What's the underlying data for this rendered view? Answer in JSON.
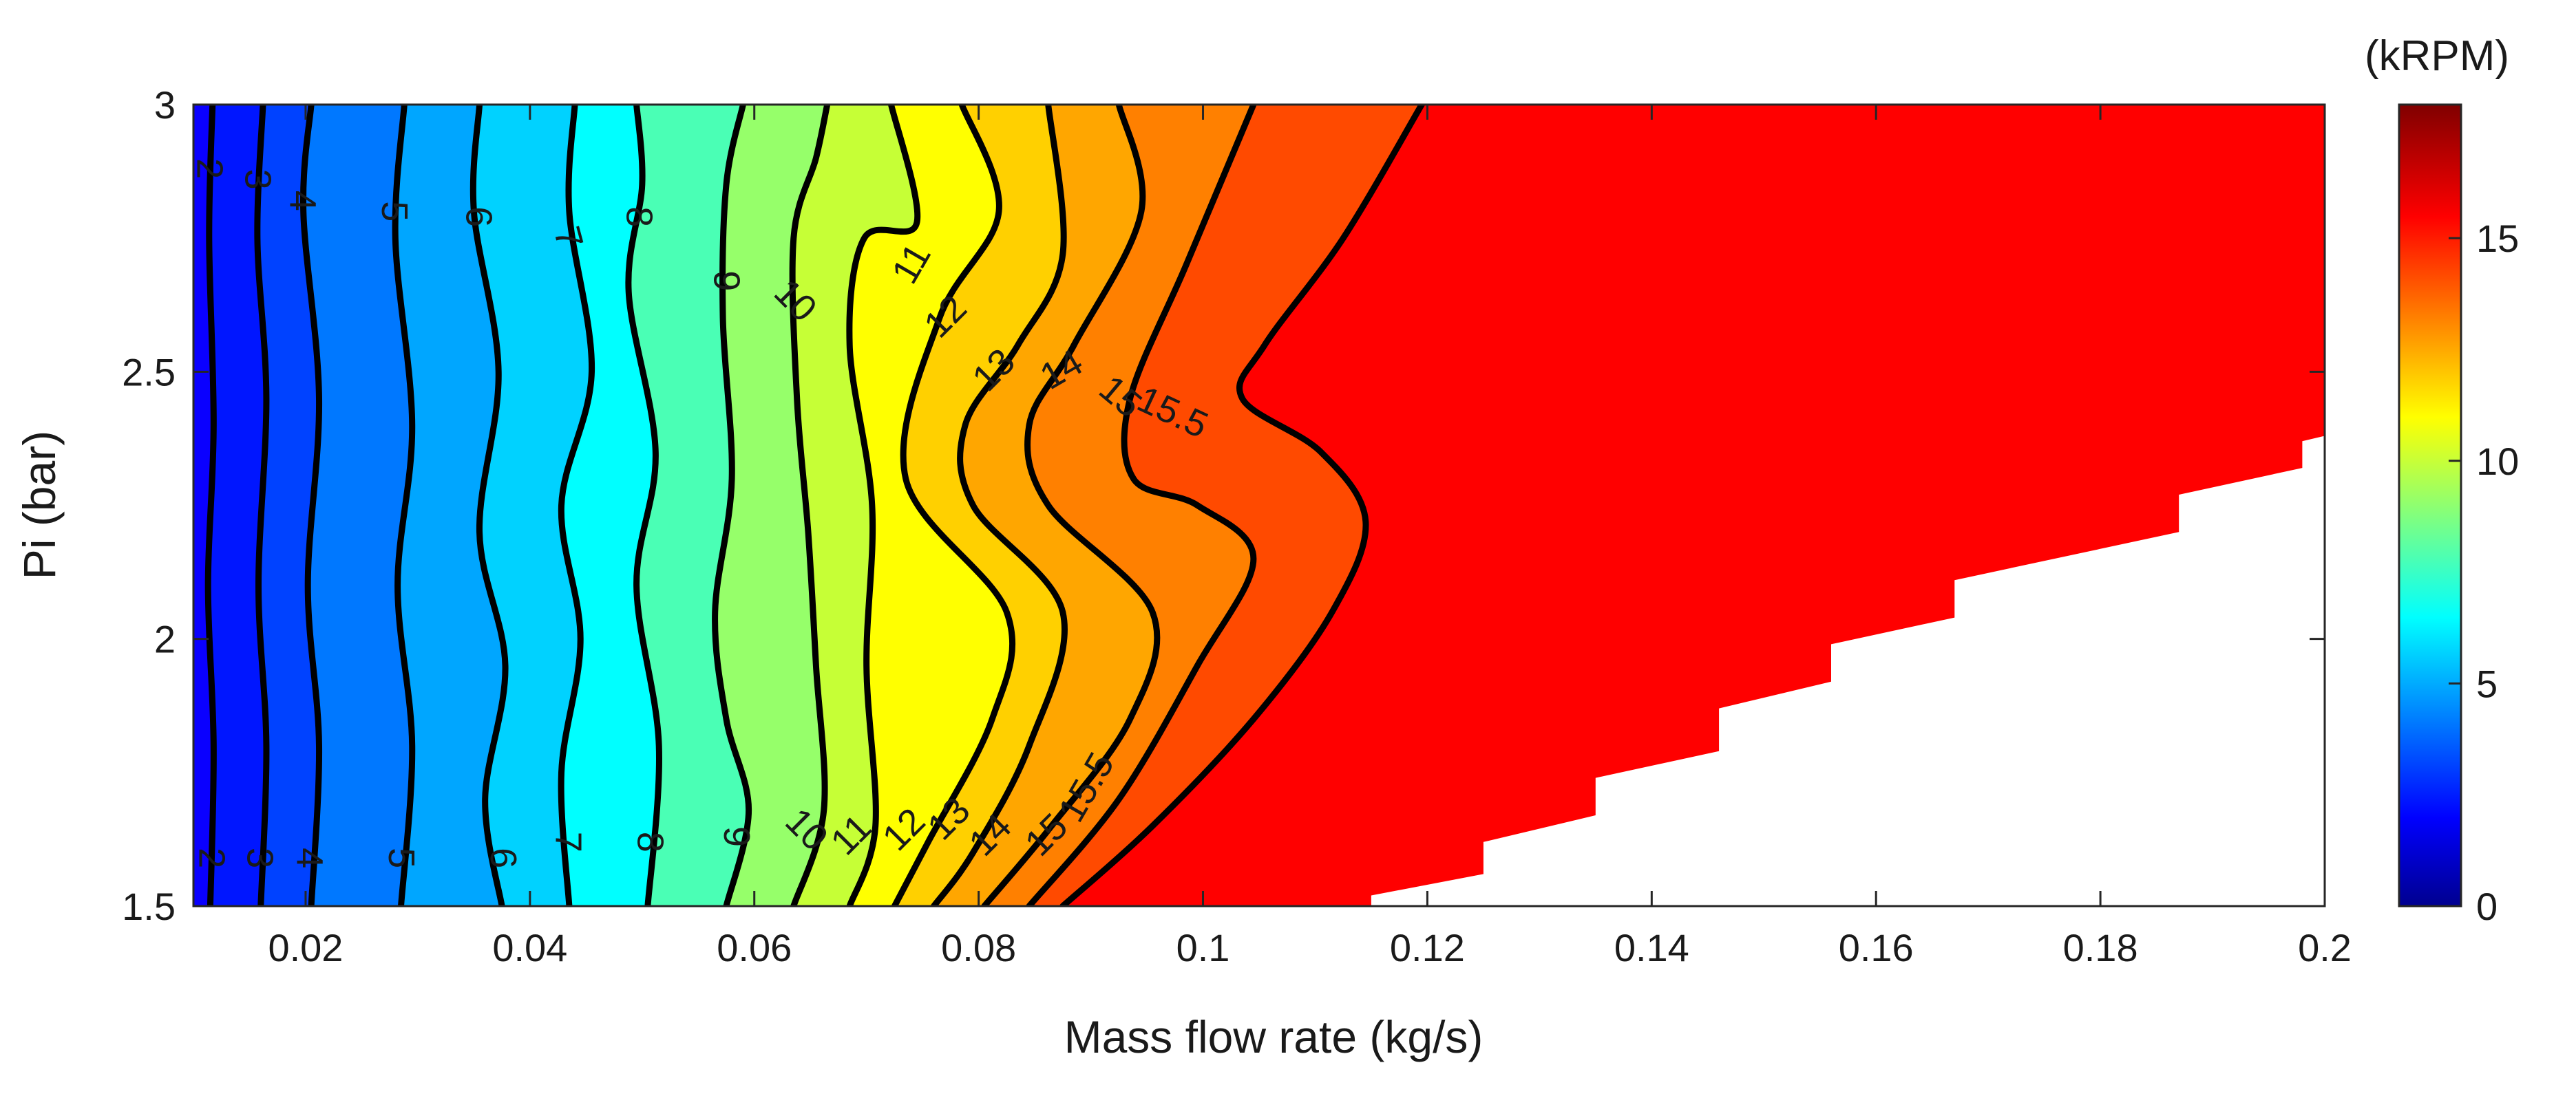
{
  "chart_data": {
    "type": "contour",
    "title": "",
    "xlabel": "Mass flow rate (kg/s)",
    "ylabel": "Pi (bar)",
    "xlim": [
      0.01,
      0.2
    ],
    "ylim": [
      1.5,
      3
    ],
    "x_ticks": [
      {
        "value": 0.02,
        "label": "0.02"
      },
      {
        "value": 0.04,
        "label": "0.04"
      },
      {
        "value": 0.06,
        "label": "0.06"
      },
      {
        "value": 0.08,
        "label": "0.08"
      },
      {
        "value": 0.1,
        "label": "0.1"
      },
      {
        "value": 0.12,
        "label": "0.12"
      },
      {
        "value": 0.14,
        "label": "0.14"
      },
      {
        "value": 0.16,
        "label": "0.16"
      },
      {
        "value": 0.18,
        "label": "0.18"
      },
      {
        "value": 0.2,
        "label": "0.2"
      }
    ],
    "y_ticks": [
      {
        "value": 1.5,
        "label": "1.5"
      },
      {
        "value": 2,
        "label": "2"
      },
      {
        "value": 2.5,
        "label": "2.5"
      },
      {
        "value": 3,
        "label": "3"
      }
    ],
    "colorbar": {
      "title": "(kRPM)",
      "range": [
        0,
        18
      ],
      "ticks": [
        {
          "value": 0,
          "label": "0"
        },
        {
          "value": 5,
          "label": "5"
        },
        {
          "value": 10,
          "label": "10"
        },
        {
          "value": 15,
          "label": "15"
        }
      ]
    },
    "contour_levels": [
      2,
      3,
      4,
      5,
      6,
      7,
      8,
      9,
      10,
      11,
      12,
      13,
      14,
      15,
      15.5
    ],
    "contours": [
      {
        "level": 2,
        "points": [
          [
            0.0115,
            1.5
          ],
          [
            0.0118,
            1.8
          ],
          [
            0.0113,
            2.1
          ],
          [
            0.0118,
            2.4
          ],
          [
            0.0114,
            2.75
          ],
          [
            0.0117,
            3.0
          ]
        ]
      },
      {
        "level": 3,
        "points": [
          [
            0.016,
            1.5
          ],
          [
            0.0165,
            1.8
          ],
          [
            0.0158,
            2.1
          ],
          [
            0.0165,
            2.45
          ],
          [
            0.0157,
            2.75
          ],
          [
            0.0162,
            3.0
          ]
        ]
      },
      {
        "level": 4,
        "points": [
          [
            0.0205,
            1.5
          ],
          [
            0.0212,
            1.8
          ],
          [
            0.0202,
            2.1
          ],
          [
            0.0212,
            2.45
          ],
          [
            0.0198,
            2.8
          ],
          [
            0.0205,
            3.0
          ]
        ]
      },
      {
        "level": 5,
        "points": [
          [
            0.0285,
            1.5
          ],
          [
            0.0295,
            1.8
          ],
          [
            0.0282,
            2.1
          ],
          [
            0.0295,
            2.4
          ],
          [
            0.028,
            2.75
          ],
          [
            0.0288,
            3.0
          ]
        ]
      },
      {
        "level": 6,
        "points": [
          [
            0.0375,
            1.5
          ],
          [
            0.036,
            1.7
          ],
          [
            0.0378,
            1.95
          ],
          [
            0.0355,
            2.2
          ],
          [
            0.0372,
            2.5
          ],
          [
            0.035,
            2.8
          ],
          [
            0.0355,
            3.0
          ]
        ]
      },
      {
        "level": 7,
        "points": [
          [
            0.0435,
            1.5
          ],
          [
            0.0428,
            1.75
          ],
          [
            0.0445,
            2.0
          ],
          [
            0.0428,
            2.25
          ],
          [
            0.0455,
            2.5
          ],
          [
            0.0435,
            2.8
          ],
          [
            0.044,
            3.0
          ]
        ]
      },
      {
        "level": 8,
        "points": [
          [
            0.0505,
            1.5
          ],
          [
            0.0515,
            1.8
          ],
          [
            0.0495,
            2.1
          ],
          [
            0.0512,
            2.35
          ],
          [
            0.0488,
            2.65
          ],
          [
            0.05,
            2.85
          ],
          [
            0.0495,
            3.0
          ]
        ]
      },
      {
        "level": 9,
        "points": [
          [
            0.0575,
            1.5
          ],
          [
            0.0595,
            1.68
          ],
          [
            0.0575,
            1.85
          ],
          [
            0.0565,
            2.05
          ],
          [
            0.058,
            2.3
          ],
          [
            0.0572,
            2.6
          ],
          [
            0.0575,
            2.85
          ],
          [
            0.059,
            3.0
          ]
        ]
      },
      {
        "level": 10,
        "points": [
          [
            0.0635,
            1.5
          ],
          [
            0.0662,
            1.68
          ],
          [
            0.0655,
            1.95
          ],
          [
            0.0648,
            2.2
          ],
          [
            0.0638,
            2.45
          ],
          [
            0.0635,
            2.75
          ],
          [
            0.0655,
            2.9
          ],
          [
            0.0665,
            3.0
          ]
        ]
      },
      {
        "level": 11,
        "points": [
          [
            0.0685,
            1.5
          ],
          [
            0.0708,
            1.65
          ],
          [
            0.07,
            1.95
          ],
          [
            0.0705,
            2.25
          ],
          [
            0.0685,
            2.55
          ],
          [
            0.0698,
            2.75
          ],
          [
            0.0745,
            2.78
          ],
          [
            0.0722,
            3.0
          ]
        ]
      },
      {
        "level": 12,
        "points": [
          [
            0.0725,
            1.5
          ],
          [
            0.0755,
            1.62
          ],
          [
            0.0812,
            1.85
          ],
          [
            0.0825,
            2.05
          ],
          [
            0.0735,
            2.3
          ],
          [
            0.0765,
            2.6
          ],
          [
            0.0818,
            2.8
          ],
          [
            0.0785,
            3.0
          ]
        ]
      },
      {
        "level": 13,
        "points": [
          [
            0.076,
            1.5
          ],
          [
            0.0795,
            1.6
          ],
          [
            0.0845,
            1.8
          ],
          [
            0.0875,
            2.05
          ],
          [
            0.0795,
            2.25
          ],
          [
            0.0788,
            2.4
          ],
          [
            0.0835,
            2.55
          ],
          [
            0.0875,
            2.72
          ],
          [
            0.0862,
            3.0
          ]
        ]
      },
      {
        "level": 14,
        "points": [
          [
            0.0805,
            1.5
          ],
          [
            0.0865,
            1.65
          ],
          [
            0.0935,
            1.85
          ],
          [
            0.0955,
            2.05
          ],
          [
            0.0862,
            2.25
          ],
          [
            0.0845,
            2.4
          ],
          [
            0.0885,
            2.55
          ],
          [
            0.0945,
            2.8
          ],
          [
            0.0925,
            3.0
          ]
        ]
      },
      {
        "level": 15,
        "points": [
          [
            0.0845,
            1.5
          ],
          [
            0.0925,
            1.7
          ],
          [
            0.0995,
            1.95
          ],
          [
            0.1045,
            2.15
          ],
          [
            0.0995,
            2.25
          ],
          [
            0.0938,
            2.3
          ],
          [
            0.0935,
            2.45
          ],
          [
            0.0985,
            2.7
          ],
          [
            0.1045,
            3.0
          ]
        ]
      },
      {
        "level": 15.5,
        "points": [
          [
            0.0875,
            1.5
          ],
          [
            0.0955,
            1.65
          ],
          [
            0.1045,
            1.85
          ],
          [
            0.1115,
            2.05
          ],
          [
            0.1145,
            2.22
          ],
          [
            0.1105,
            2.35
          ],
          [
            0.1035,
            2.45
          ],
          [
            0.1055,
            2.55
          ],
          [
            0.1125,
            2.75
          ],
          [
            0.1195,
            3.0
          ]
        ]
      }
    ],
    "contour_labels": [
      {
        "text": "2",
        "x": 0.0112,
        "y": 2.88,
        "rot": 90
      },
      {
        "text": "3",
        "x": 0.0155,
        "y": 2.86,
        "rot": 90
      },
      {
        "text": "4",
        "x": 0.0195,
        "y": 2.82,
        "rot": 90
      },
      {
        "text": "5",
        "x": 0.0277,
        "y": 2.8,
        "rot": 90
      },
      {
        "text": "6",
        "x": 0.0352,
        "y": 2.79,
        "rot": 90
      },
      {
        "text": "7",
        "x": 0.0432,
        "y": 2.75,
        "rot": 75
      },
      {
        "text": "8",
        "x": 0.0495,
        "y": 2.79,
        "rot": 90
      },
      {
        "text": "9",
        "x": 0.0573,
        "y": 2.67,
        "rot": 90
      },
      {
        "text": "10",
        "x": 0.0635,
        "y": 2.63,
        "rot": 45
      },
      {
        "text": "11",
        "x": 0.0742,
        "y": 2.7,
        "rot": -60
      },
      {
        "text": "12",
        "x": 0.0772,
        "y": 2.6,
        "rot": -45
      },
      {
        "text": "13",
        "x": 0.0815,
        "y": 2.5,
        "rot": -45
      },
      {
        "text": "14",
        "x": 0.0875,
        "y": 2.5,
        "rot": -30
      },
      {
        "text": "15",
        "x": 0.0925,
        "y": 2.45,
        "rot": 40
      },
      {
        "text": "15.5",
        "x": 0.0972,
        "y": 2.42,
        "rot": 25
      },
      {
        "text": "2",
        "x": 0.0114,
        "y": 1.59,
        "rot": 90
      },
      {
        "text": "3",
        "x": 0.0157,
        "y": 1.59,
        "rot": 90
      },
      {
        "text": "4",
        "x": 0.0201,
        "y": 1.59,
        "rot": 90
      },
      {
        "text": "5",
        "x": 0.0283,
        "y": 1.59,
        "rot": 90
      },
      {
        "text": "6",
        "x": 0.0374,
        "y": 1.59,
        "rot": 90
      },
      {
        "text": "7",
        "x": 0.0432,
        "y": 1.62,
        "rot": 90
      },
      {
        "text": "8",
        "x": 0.0505,
        "y": 1.62,
        "rot": 90
      },
      {
        "text": "9",
        "x": 0.0582,
        "y": 1.63,
        "rot": 90
      },
      {
        "text": "10",
        "x": 0.0645,
        "y": 1.64,
        "rot": 45
      },
      {
        "text": "11",
        "x": 0.0688,
        "y": 1.63,
        "rot": -45
      },
      {
        "text": "12",
        "x": 0.0735,
        "y": 1.64,
        "rot": -45
      },
      {
        "text": "13",
        "x": 0.0775,
        "y": 1.66,
        "rot": -45
      },
      {
        "text": "14",
        "x": 0.0812,
        "y": 1.63,
        "rot": -45
      },
      {
        "text": "15",
        "x": 0.0862,
        "y": 1.63,
        "rot": -45
      },
      {
        "text": "15.5",
        "x": 0.0898,
        "y": 1.72,
        "rot": -60
      }
    ],
    "fill_regions": [
      {
        "from": null,
        "to": 2,
        "color": "#0a00ff"
      },
      {
        "from": 2,
        "to": 3,
        "color": "#0016ff"
      },
      {
        "from": 3,
        "to": 4,
        "color": "#0042ff"
      },
      {
        "from": 4,
        "to": 5,
        "color": "#0078ff"
      },
      {
        "from": 5,
        "to": 6,
        "color": "#00a6ff"
      },
      {
        "from": 6,
        "to": 7,
        "color": "#00d2ff"
      },
      {
        "from": 7,
        "to": 8,
        "color": "#00ffff"
      },
      {
        "from": 8,
        "to": 9,
        "color": "#4affb5"
      },
      {
        "from": 9,
        "to": 10,
        "color": "#96ff6a"
      },
      {
        "from": 10,
        "to": 11,
        "color": "#c6ff36"
      },
      {
        "from": 11,
        "to": 12,
        "color": "#ffff00"
      },
      {
        "from": 12,
        "to": 13,
        "color": "#ffd000"
      },
      {
        "from": 13,
        "to": 14,
        "color": "#ffa600"
      },
      {
        "from": 14,
        "to": 15,
        "color": "#ff8000"
      },
      {
        "from": 15,
        "to": 15.5,
        "color": "#ff4a00"
      },
      {
        "from": 15.5,
        "to": null,
        "color": "#ff0000"
      }
    ],
    "blank_region_boundary": [
      [
        0.115,
        1.5
      ],
      [
        0.115,
        1.52
      ],
      [
        0.125,
        1.56
      ],
      [
        0.125,
        1.62
      ],
      [
        0.135,
        1.67
      ],
      [
        0.135,
        1.74
      ],
      [
        0.146,
        1.79
      ],
      [
        0.146,
        1.87
      ],
      [
        0.156,
        1.92
      ],
      [
        0.156,
        1.99
      ],
      [
        0.167,
        2.04
      ],
      [
        0.167,
        2.11
      ],
      [
        0.187,
        2.2
      ],
      [
        0.187,
        2.27
      ],
      [
        0.198,
        2.32
      ],
      [
        0.198,
        2.37
      ],
      [
        0.2,
        2.38
      ]
    ]
  }
}
